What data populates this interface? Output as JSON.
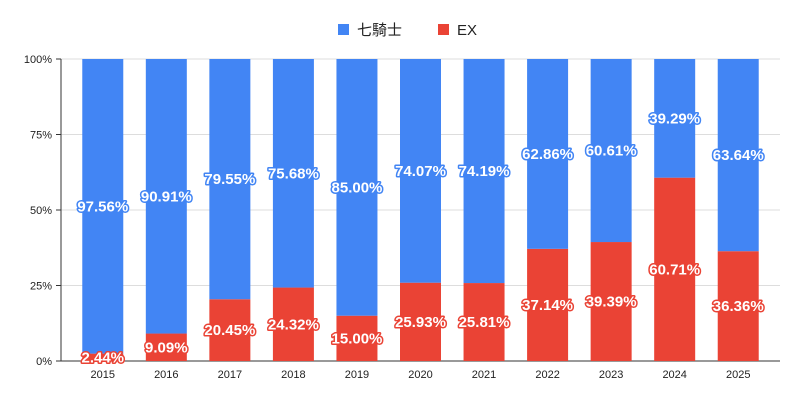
{
  "chart_data": {
    "type": "bar",
    "stacked": "percent",
    "categories": [
      "2015",
      "2016",
      "2017",
      "2018",
      "2019",
      "2020",
      "2021",
      "2022",
      "2023",
      "2024",
      "2025"
    ],
    "series": [
      {
        "name": "七騎士",
        "color": "#4285f4",
        "values": [
          97.56,
          90.91,
          79.55,
          75.68,
          85.0,
          74.07,
          74.19,
          62.86,
          60.61,
          39.29,
          63.64
        ]
      },
      {
        "name": "EX",
        "color": "#ea4335",
        "values": [
          2.44,
          9.09,
          20.45,
          24.32,
          15.0,
          25.93,
          25.81,
          37.14,
          39.39,
          60.71,
          36.36
        ]
      }
    ],
    "ylim": [
      0,
      100
    ],
    "yticks": [
      "0%",
      "25%",
      "50%",
      "75%",
      "100%"
    ],
    "grid": true,
    "legend": "top",
    "data_labels": true
  }
}
